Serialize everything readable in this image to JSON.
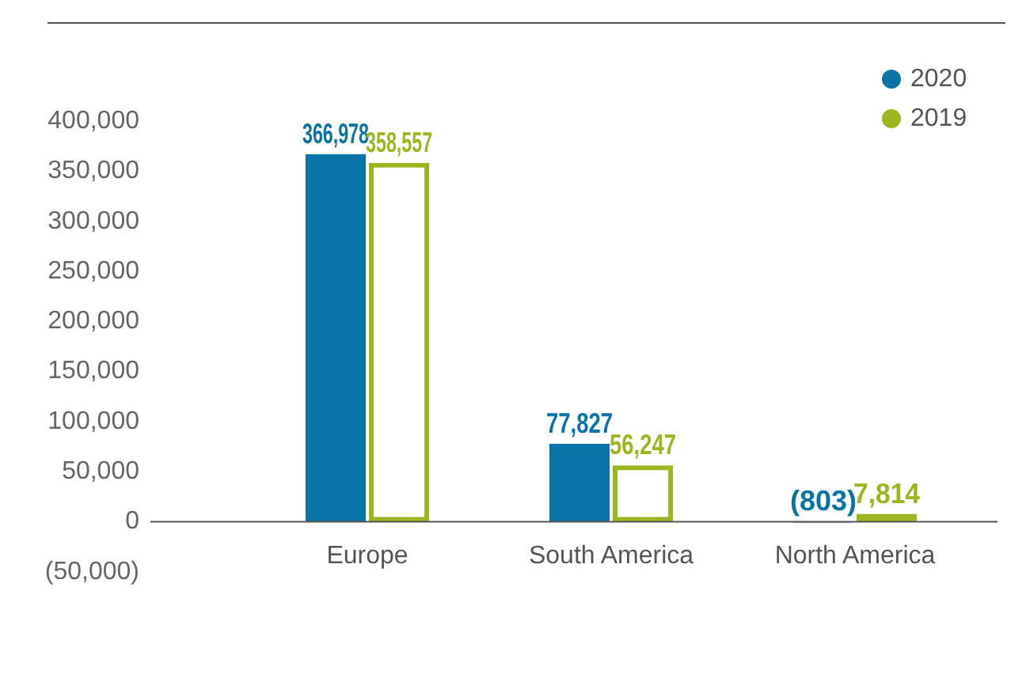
{
  "chart_data": {
    "type": "bar",
    "categories": [
      "Europe",
      "South America",
      "North America"
    ],
    "series": [
      {
        "name": "2020",
        "color": "#0a74a8",
        "values": [
          366978,
          77827,
          -803
        ],
        "value_labels": [
          "366,978",
          "77,827",
          "(803)"
        ]
      },
      {
        "name": "2019",
        "color": "#9bb61f",
        "values": [
          358557,
          56247,
          7814
        ],
        "value_labels": [
          "358,557",
          "56,247",
          "7,814"
        ]
      }
    ],
    "ylim": [
      -50000,
      400000
    ],
    "yticks": [
      {
        "value": -50000,
        "label": "(50,000)"
      },
      {
        "value": 0,
        "label": "0"
      },
      {
        "value": 50000,
        "label": "50,000"
      },
      {
        "value": 100000,
        "label": "100,000"
      },
      {
        "value": 150000,
        "label": "150,000"
      },
      {
        "value": 200000,
        "label": "200,000"
      },
      {
        "value": 250000,
        "label": "250,000"
      },
      {
        "value": 300000,
        "label": "300,000"
      },
      {
        "value": 350000,
        "label": "350,000"
      },
      {
        "value": 400000,
        "label": "400,000"
      }
    ],
    "grid": false,
    "legend": "top right"
  }
}
